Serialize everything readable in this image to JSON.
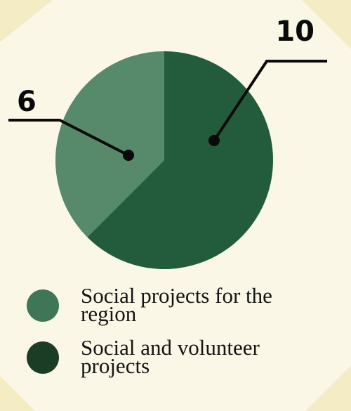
{
  "colors": {
    "background": "#fbf7e6",
    "corner_accent": "#f4ecc4",
    "slice_light": "#57896b",
    "slice_dark": "#235c3c",
    "legend_light": "#3e7657",
    "legend_dark": "#1b3d25",
    "leader_line": "#0a0a0a"
  },
  "chart_data": {
    "type": "pie",
    "title": "",
    "categories": [
      "Social projects for the region",
      "Social and volunteer projects"
    ],
    "values": [
      6,
      10
    ],
    "data_labels": [
      "6",
      "10"
    ],
    "legend": {
      "placement": "bottom",
      "entries": [
        "Social projects for the region",
        "Social and volunteer projects"
      ]
    }
  }
}
